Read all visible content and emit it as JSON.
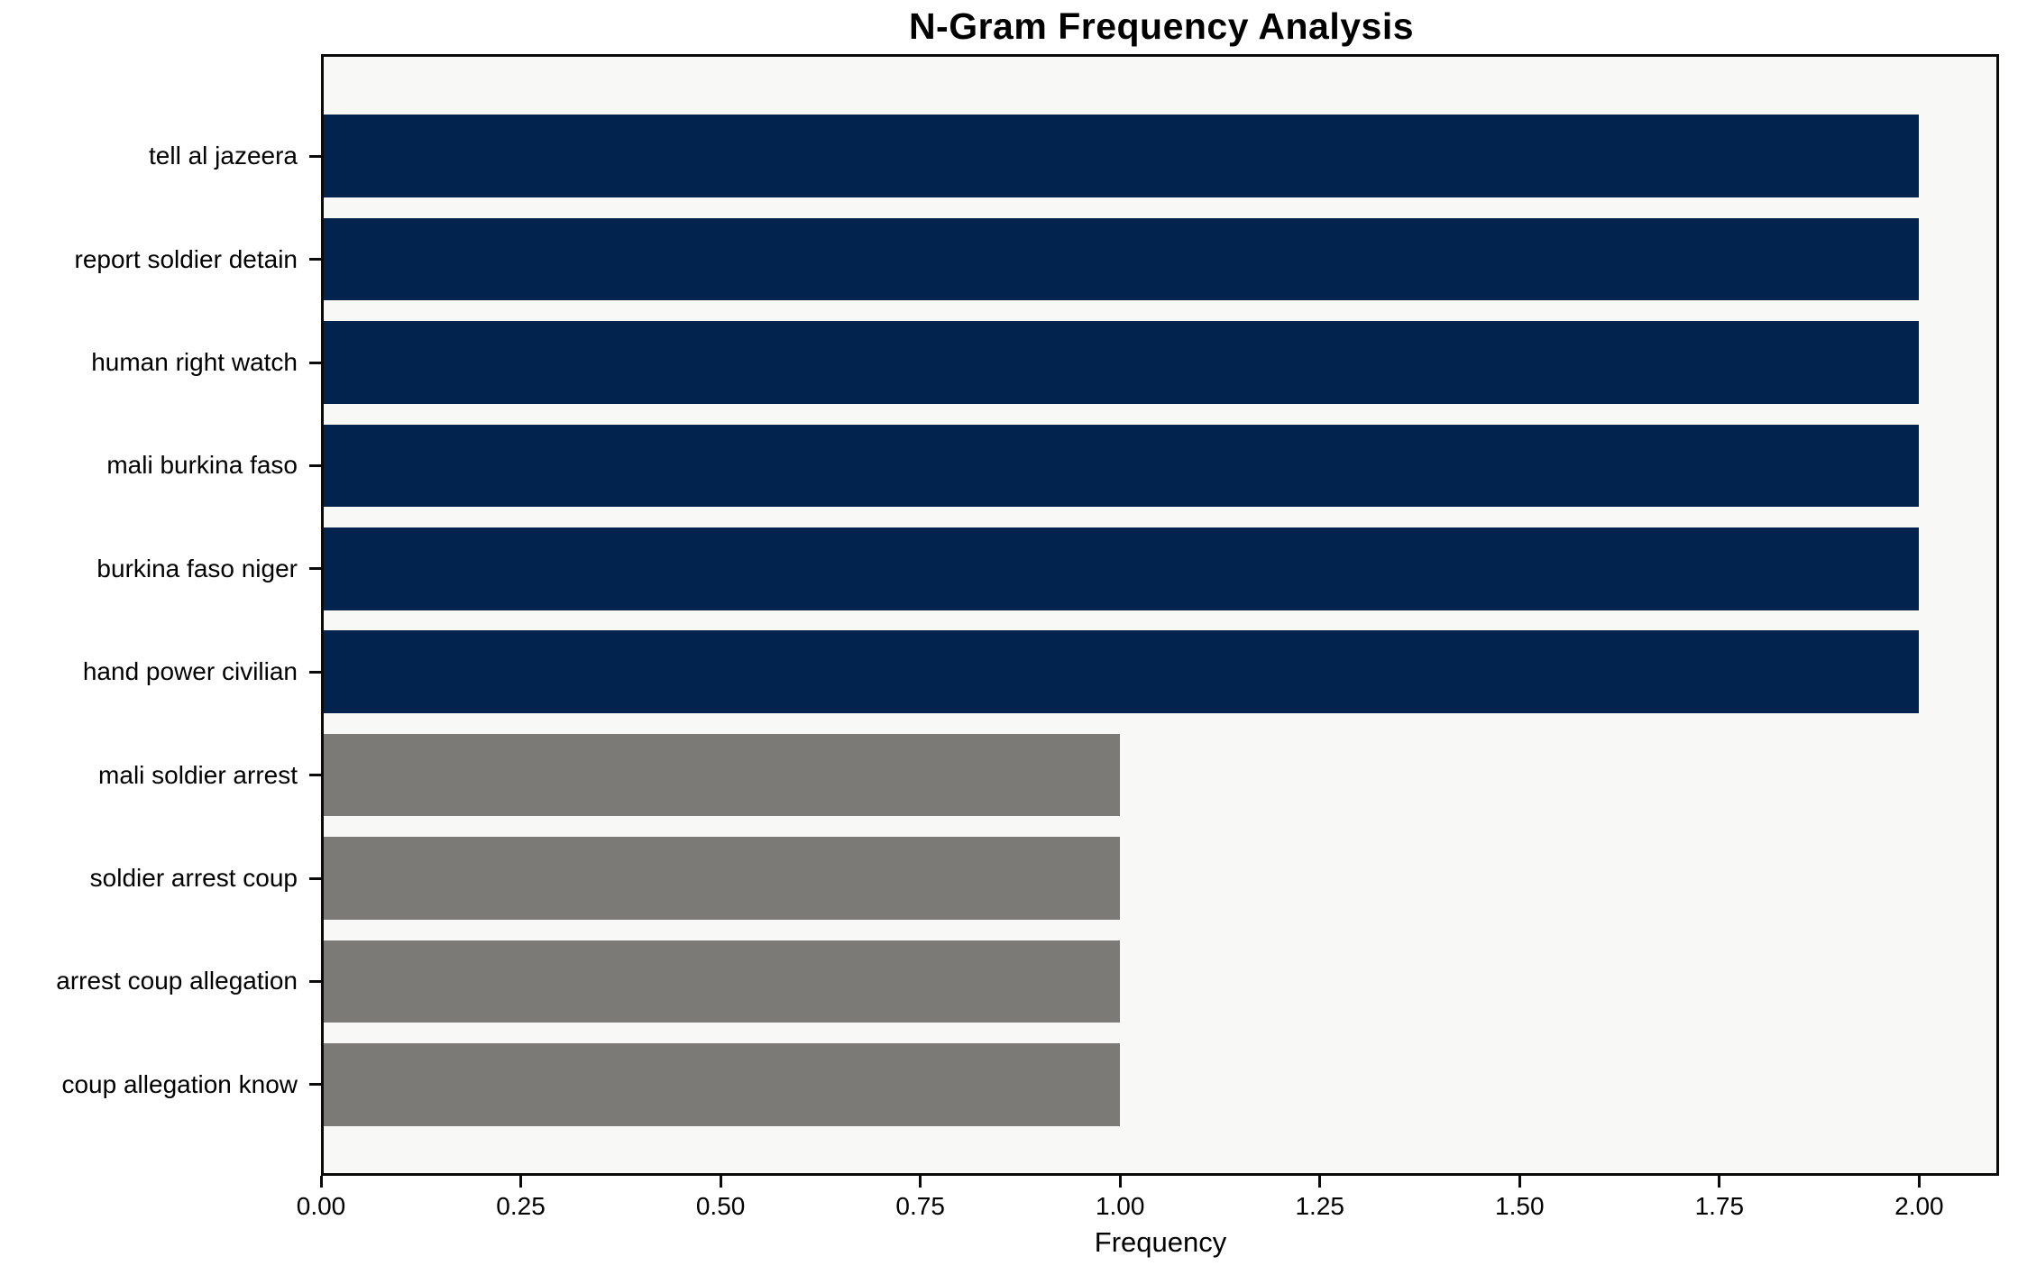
{
  "chart_data": {
    "type": "bar",
    "orientation": "horizontal",
    "title": "N-Gram Frequency Analysis",
    "xlabel": "Frequency",
    "ylabel": "",
    "categories": [
      "tell al jazeera",
      "report soldier detain",
      "human right watch",
      "mali burkina faso",
      "burkina faso niger",
      "hand power civilian",
      "mali soldier arrest",
      "soldier arrest coup",
      "arrest coup allegation",
      "coup allegation know"
    ],
    "values": [
      2,
      2,
      2,
      2,
      2,
      2,
      1,
      1,
      1,
      1
    ],
    "bar_colors": [
      "#02234d",
      "#02234d",
      "#02234d",
      "#02234d",
      "#02234d",
      "#02234d",
      "#7c7a77",
      "#7c7a77",
      "#7c7a77",
      "#7c7a77"
    ],
    "xlim": [
      0,
      2.1
    ],
    "xtick_values": [
      0,
      0.25,
      0.5,
      0.75,
      1.0,
      1.25,
      1.5,
      1.75,
      2.0
    ],
    "xtick_labels": [
      "0.00",
      "0.25",
      "0.50",
      "0.75",
      "1.00",
      "1.25",
      "1.50",
      "1.75",
      "2.00"
    ],
    "grid": false,
    "legend": false,
    "colors": {
      "high_freq_bar": "#02234d",
      "low_freq_bar": "#7c7a77",
      "plot_background": "#f8f8f7",
      "figure_background": "#ffffff",
      "spine": "#0a0a0a",
      "text": "#000000"
    }
  }
}
